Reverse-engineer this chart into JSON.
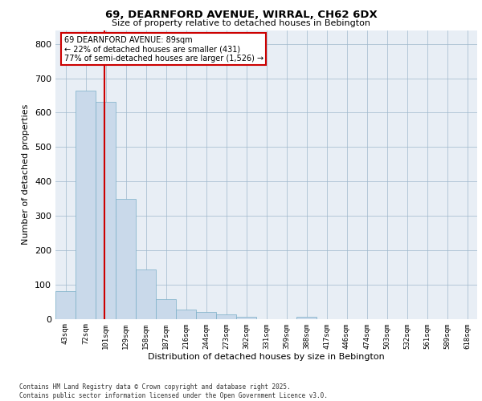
{
  "title_line1": "69, DEARNFORD AVENUE, WIRRAL, CH62 6DX",
  "title_line2": "Size of property relative to detached houses in Bebington",
  "xlabel": "Distribution of detached houses by size in Bebington",
  "ylabel": "Number of detached properties",
  "bar_labels": [
    "43sqm",
    "72sqm",
    "101sqm",
    "129sqm",
    "158sqm",
    "187sqm",
    "216sqm",
    "244sqm",
    "273sqm",
    "302sqm",
    "331sqm",
    "359sqm",
    "388sqm",
    "417sqm",
    "446sqm",
    "474sqm",
    "503sqm",
    "532sqm",
    "561sqm",
    "589sqm",
    "618sqm"
  ],
  "bar_values": [
    80,
    665,
    632,
    350,
    143,
    58,
    28,
    20,
    13,
    7,
    0,
    0,
    7,
    0,
    0,
    0,
    0,
    0,
    0,
    0,
    0
  ],
  "bar_color": "#c9d9ea",
  "bar_edge_color": "#7aafc8",
  "vline_color": "#cc0000",
  "vline_position": 1.93,
  "annotation_title": "69 DEARNFORD AVENUE: 89sqm",
  "annotation_line1": "← 22% of detached houses are smaller (431)",
  "annotation_line2": "77% of semi-detached houses are larger (1,526) →",
  "annotation_box_color": "#ffffff",
  "annotation_box_edge": "#cc0000",
  "ylim": [
    0,
    840
  ],
  "yticks": [
    0,
    100,
    200,
    300,
    400,
    500,
    600,
    700,
    800
  ],
  "background_color": "#e8eef5",
  "footer_line1": "Contains HM Land Registry data © Crown copyright and database right 2025.",
  "footer_line2": "Contains public sector information licensed under the Open Government Licence v3.0."
}
